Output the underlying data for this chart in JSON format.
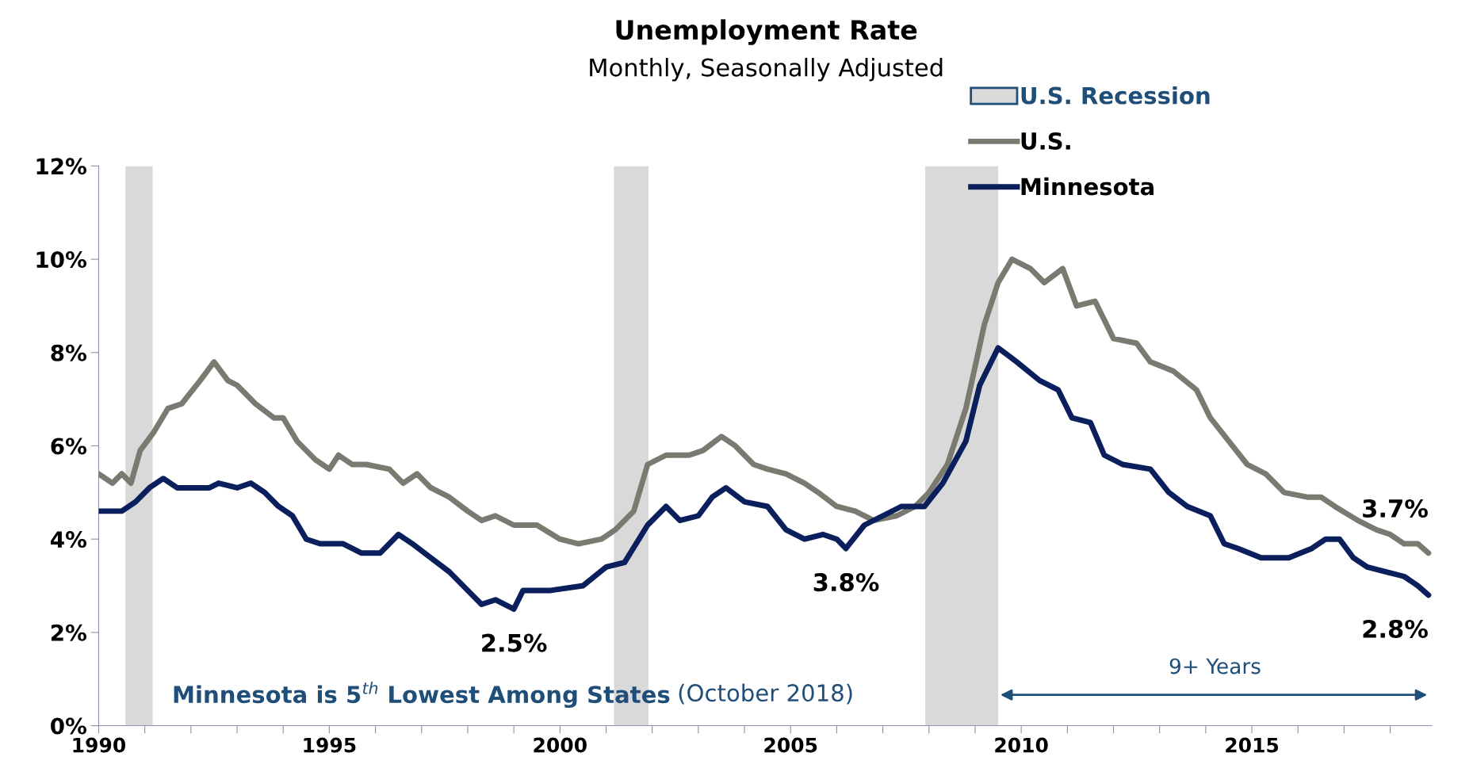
{
  "chart_data": {
    "type": "line",
    "title": "Unemployment Rate",
    "subtitle": "Monthly, Seasonally Adjusted",
    "xlim": [
      1990,
      2018.9
    ],
    "ylim": [
      0,
      12
    ],
    "xticks": [
      {
        "value": 1990,
        "label": "1990"
      },
      {
        "value": 1991,
        "label": null
      },
      {
        "value": 1992,
        "label": null
      },
      {
        "value": 1993,
        "label": null
      },
      {
        "value": 1994,
        "label": null
      },
      {
        "value": 1995,
        "label": "1995"
      },
      {
        "value": 1996,
        "label": null
      },
      {
        "value": 1997,
        "label": null
      },
      {
        "value": 1998,
        "label": null
      },
      {
        "value": 1999,
        "label": null
      },
      {
        "value": 2000,
        "label": "2000"
      },
      {
        "value": 2001,
        "label": null
      },
      {
        "value": 2002,
        "label": null
      },
      {
        "value": 2003,
        "label": null
      },
      {
        "value": 2004,
        "label": null
      },
      {
        "value": 2005,
        "label": "2005"
      },
      {
        "value": 2006,
        "label": null
      },
      {
        "value": 2007,
        "label": null
      },
      {
        "value": 2008,
        "label": null
      },
      {
        "value": 2009,
        "label": null
      },
      {
        "value": 2010,
        "label": "2010"
      },
      {
        "value": 2011,
        "label": null
      },
      {
        "value": 2012,
        "label": null
      },
      {
        "value": 2013,
        "label": null
      },
      {
        "value": 2014,
        "label": null
      },
      {
        "value": 2015,
        "label": "2015"
      },
      {
        "value": 2016,
        "label": null
      },
      {
        "value": 2017,
        "label": null
      },
      {
        "value": 2018,
        "label": null
      }
    ],
    "yticks": [
      {
        "value": 0,
        "label": "0%"
      },
      {
        "value": 2,
        "label": "2%"
      },
      {
        "value": 4,
        "label": "4%"
      },
      {
        "value": 6,
        "label": "6%"
      },
      {
        "value": 8,
        "label": "8%"
      },
      {
        "value": 10,
        "label": "10%"
      },
      {
        "value": 12,
        "label": "12%"
      }
    ],
    "grid": false,
    "legend": "top right",
    "line_style": "solid",
    "marker": "none",
    "bands": [
      {
        "axis": "x",
        "from": 1990.58,
        "to": 1991.17,
        "label": "U.S. Recession",
        "color": "#d9d9d9"
      },
      {
        "axis": "x",
        "from": 2001.17,
        "to": 2001.92,
        "color": "#d9d9d9"
      },
      {
        "axis": "x",
        "from": 2007.92,
        "to": 2009.5,
        "color": "#d9d9d9"
      }
    ],
    "series": [
      {
        "name": "U.S.",
        "color": "#7a7a70",
        "x": [
          1990.0,
          1990.3,
          1990.5,
          1990.7,
          1990.9,
          1991.2,
          1991.5,
          1991.8,
          1992.2,
          1992.5,
          1992.8,
          1993.0,
          1993.4,
          1993.8,
          1994.0,
          1994.3,
          1994.7,
          1995.0,
          1995.2,
          1995.5,
          1995.8,
          1996.3,
          1996.6,
          1996.9,
          1997.2,
          1997.6,
          1998.0,
          1998.3,
          1998.6,
          1999.0,
          1999.5,
          2000.0,
          2000.4,
          2000.9,
          2001.2,
          2001.6,
          2001.9,
          2002.3,
          2002.8,
          2003.1,
          2003.5,
          2003.8,
          2004.2,
          2004.5,
          2004.9,
          2005.3,
          2005.6,
          2006.0,
          2006.4,
          2006.8,
          2007.3,
          2007.7,
          2008.0,
          2008.4,
          2008.8,
          2009.2,
          2009.5,
          2009.8,
          2010.2,
          2010.5,
          2010.9,
          2011.2,
          2011.6,
          2012.0,
          2012.5,
          2012.8,
          2013.3,
          2013.8,
          2014.1,
          2014.5,
          2014.9,
          2015.3,
          2015.7,
          2016.2,
          2016.5,
          2016.8,
          2017.3,
          2017.7,
          2018.0,
          2018.3,
          2018.6,
          2018.83
        ],
        "values": [
          5.4,
          5.2,
          5.4,
          5.2,
          5.9,
          6.3,
          6.8,
          6.9,
          7.4,
          7.8,
          7.4,
          7.3,
          6.9,
          6.6,
          6.6,
          6.1,
          5.7,
          5.5,
          5.8,
          5.6,
          5.6,
          5.5,
          5.2,
          5.4,
          5.1,
          4.9,
          4.6,
          4.4,
          4.5,
          4.3,
          4.3,
          4.0,
          3.9,
          4.0,
          4.2,
          4.6,
          5.6,
          5.8,
          5.8,
          5.9,
          6.2,
          6.0,
          5.6,
          5.5,
          5.4,
          5.2,
          5.0,
          4.7,
          4.6,
          4.4,
          4.5,
          4.7,
          5.0,
          5.6,
          6.8,
          8.6,
          9.5,
          10.0,
          9.8,
          9.5,
          9.8,
          9.0,
          9.1,
          8.3,
          8.2,
          7.8,
          7.6,
          7.2,
          6.6,
          6.1,
          5.6,
          5.4,
          5.0,
          4.9,
          4.9,
          4.7,
          4.4,
          4.2,
          4.1,
          3.9,
          3.9,
          3.7
        ]
      },
      {
        "name": "Minnesota",
        "color": "#0a1f5c",
        "x": [
          1990.0,
          1990.5,
          1990.8,
          1991.1,
          1991.4,
          1991.7,
          1992.4,
          1992.6,
          1993.0,
          1993.3,
          1993.6,
          1993.9,
          1994.2,
          1994.5,
          1994.8,
          1995.3,
          1995.7,
          1996.1,
          1996.5,
          1996.8,
          1997.2,
          1997.6,
          1998.0,
          1998.3,
          1998.6,
          1999.0,
          1999.2,
          1999.8,
          2000.5,
          2001.0,
          2001.4,
          2001.9,
          2002.3,
          2002.6,
          2003.0,
          2003.3,
          2003.6,
          2004.0,
          2004.5,
          2004.9,
          2005.3,
          2005.7,
          2006.0,
          2006.2,
          2006.6,
          2007.0,
          2007.4,
          2007.9,
          2008.3,
          2008.8,
          2009.1,
          2009.5,
          2009.9,
          2010.4,
          2010.8,
          2011.1,
          2011.5,
          2011.8,
          2012.2,
          2012.8,
          2013.2,
          2013.6,
          2014.1,
          2014.4,
          2014.7,
          2015.2,
          2015.8,
          2016.3,
          2016.6,
          2016.9,
          2017.2,
          2017.5,
          2017.9,
          2018.3,
          2018.6,
          2018.83
        ],
        "values": [
          4.6,
          4.6,
          4.8,
          5.1,
          5.3,
          5.1,
          5.1,
          5.2,
          5.1,
          5.2,
          5.0,
          4.7,
          4.5,
          4.0,
          3.9,
          3.9,
          3.7,
          3.7,
          4.1,
          3.9,
          3.6,
          3.3,
          2.9,
          2.6,
          2.7,
          2.5,
          2.9,
          2.9,
          3.0,
          3.4,
          3.5,
          4.3,
          4.7,
          4.4,
          4.5,
          4.9,
          5.1,
          4.8,
          4.7,
          4.2,
          4.0,
          4.1,
          4.0,
          3.8,
          4.3,
          4.5,
          4.7,
          4.7,
          5.2,
          6.1,
          7.3,
          8.1,
          7.8,
          7.4,
          7.2,
          6.6,
          6.5,
          5.8,
          5.6,
          5.5,
          5.0,
          4.7,
          4.5,
          3.9,
          3.8,
          3.6,
          3.6,
          3.8,
          4.0,
          4.0,
          3.6,
          3.4,
          3.3,
          3.2,
          3.0,
          2.8
        ]
      }
    ],
    "annotations": [
      {
        "text": "2.5%",
        "x": 1999.0,
        "y": 2.5
      },
      {
        "text": "3.8%",
        "x": 2006.2,
        "y": 3.8
      },
      {
        "text": "3.7%",
        "x": 2018.83,
        "y": 3.7
      },
      {
        "text": "2.8%",
        "x": 2018.83,
        "y": 2.8
      },
      "Minnesota is 5$^{th}$ Lowest Among States",
      "(October 2018)",
      "9+ Years"
    ]
  }
}
